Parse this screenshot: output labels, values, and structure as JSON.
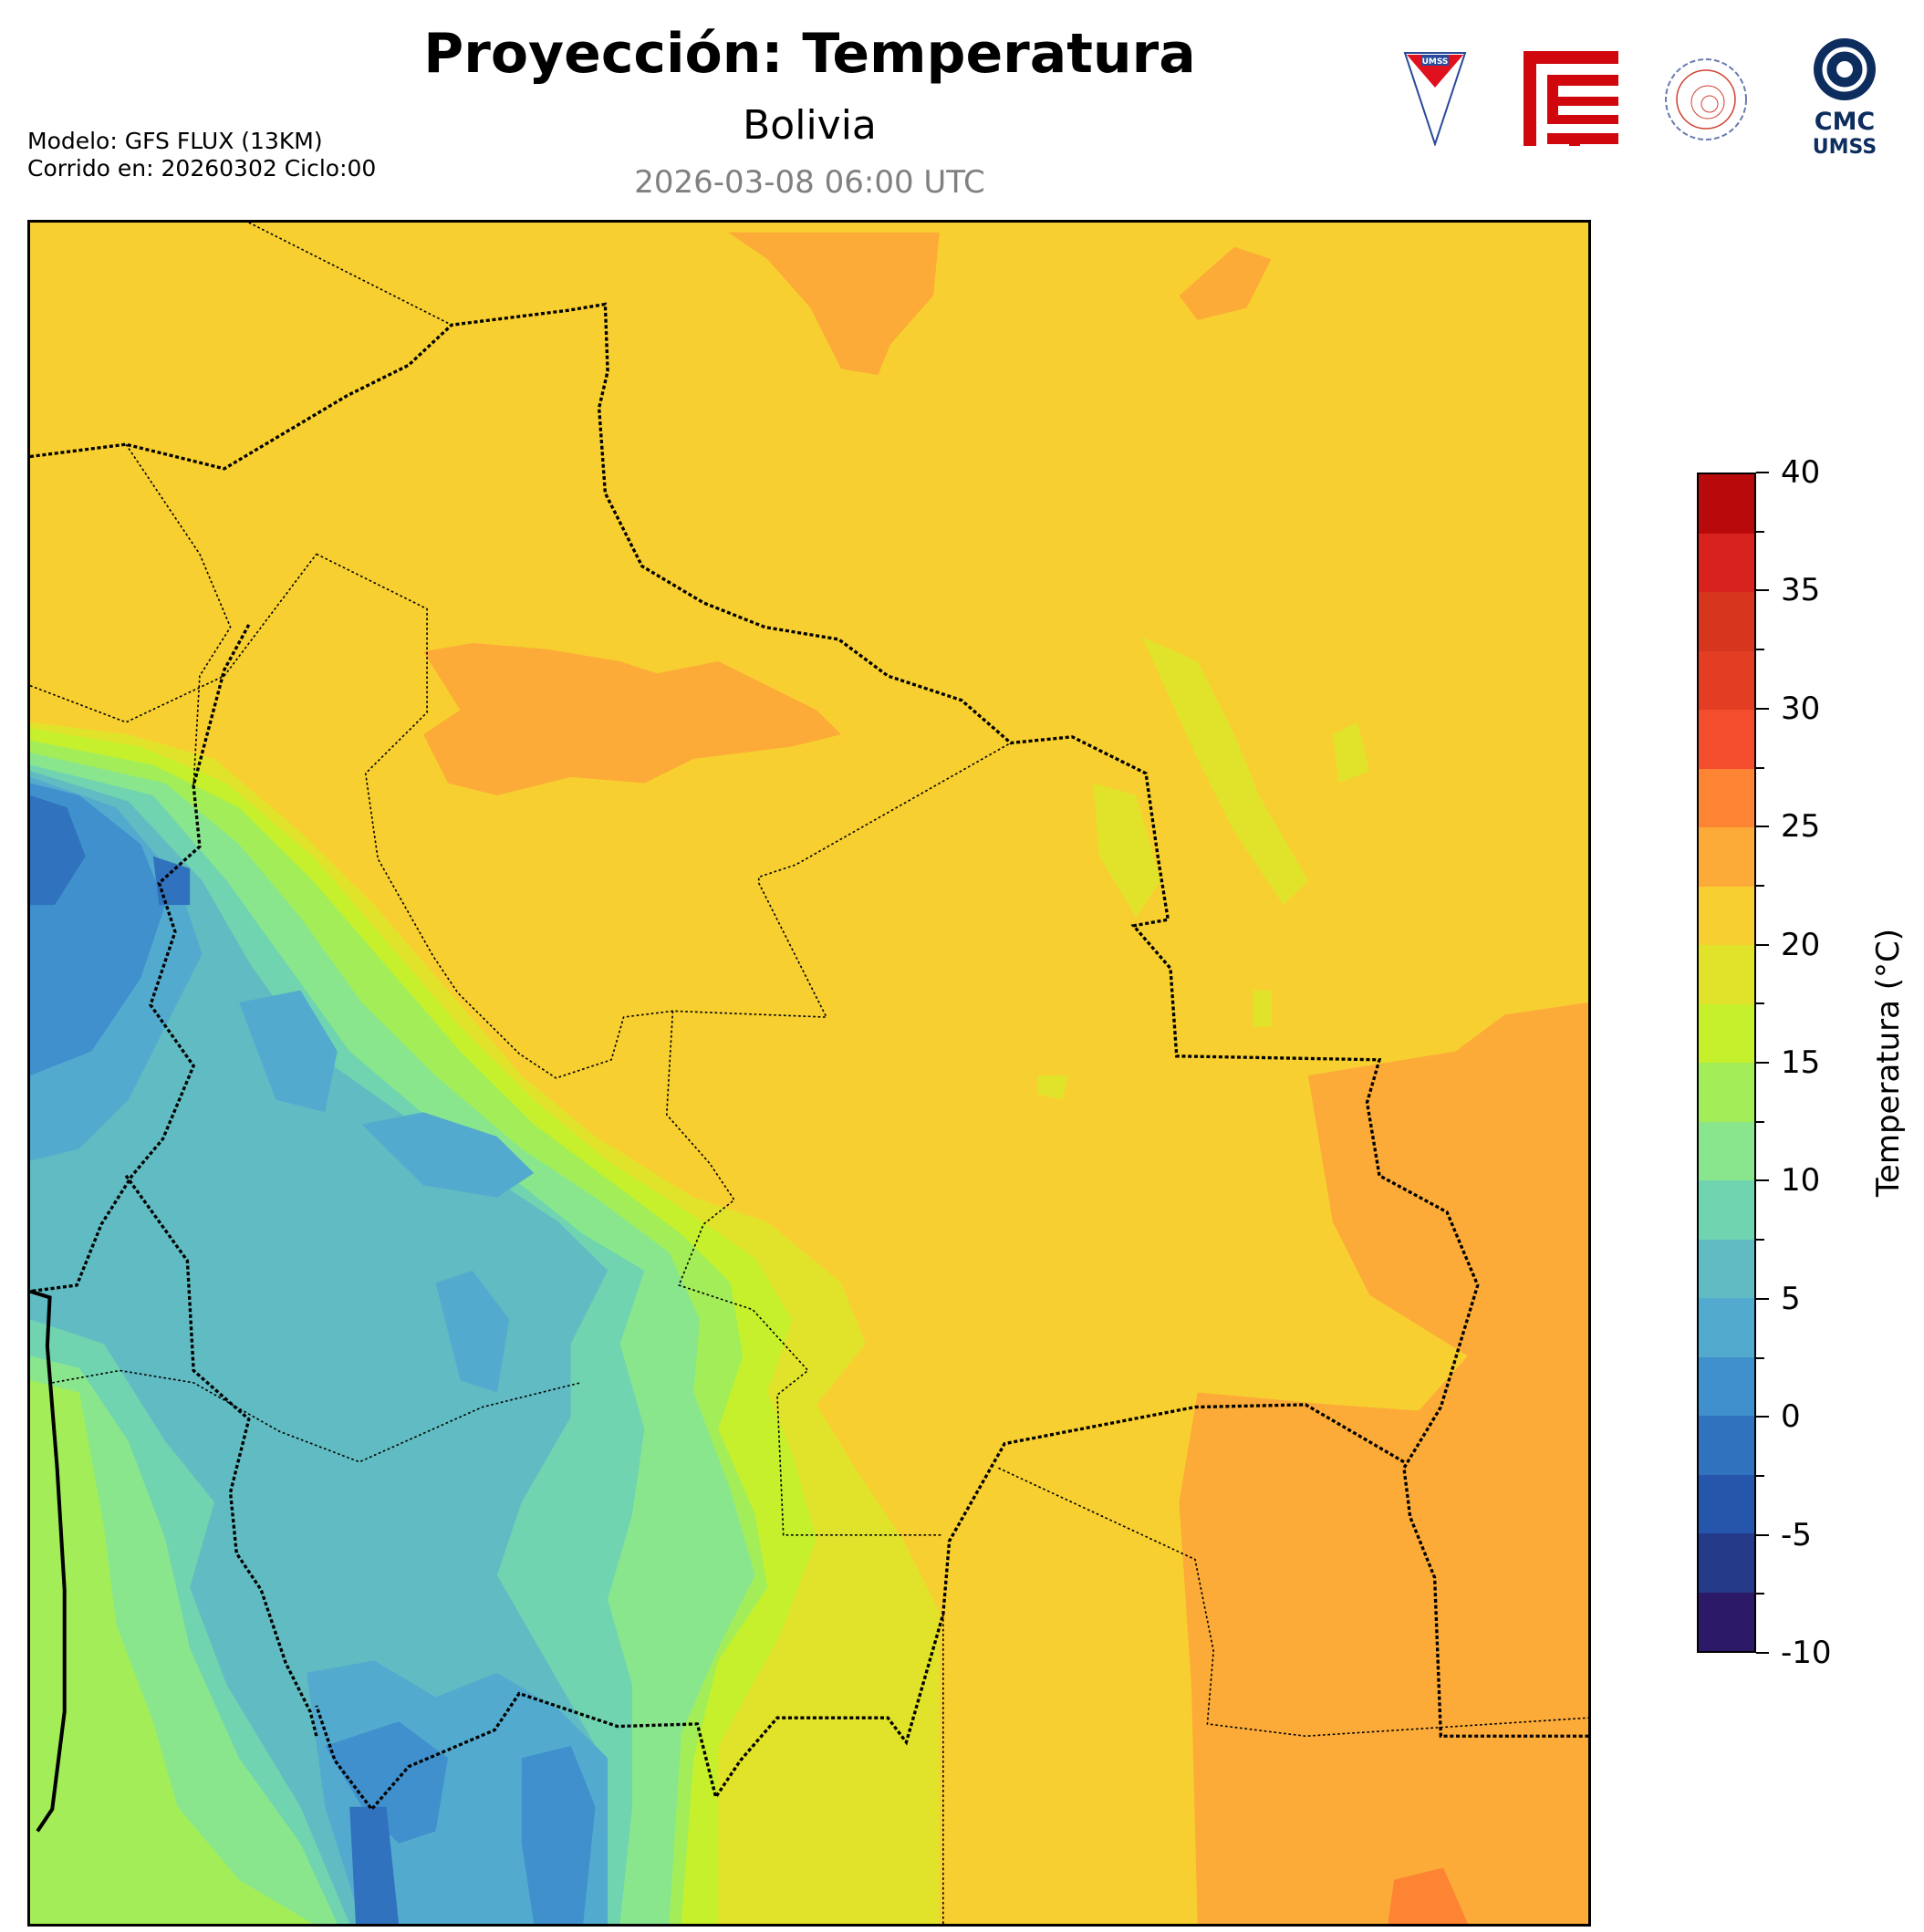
{
  "header": {
    "title": "Proyección: Temperatura",
    "subtitle": "Bolivia",
    "valid_time": "2026-03-08 06:00 UTC",
    "model_line": "Modelo: GFS FLUX (13KM)",
    "run_line": "Corrido en: 20260302 Ciclo:00"
  },
  "logos": [
    {
      "name": "umss-shield",
      "text": "UMSS"
    },
    {
      "name": "fcyt-logo",
      "text": ""
    },
    {
      "name": "departamento-fisica-seal",
      "text": "DEPARTAMENTO DE FÍSICA"
    },
    {
      "name": "cmc-umss-logo",
      "text": "CMC UMSS"
    }
  ],
  "chart_data": {
    "type": "heatmap",
    "title": "Proyección: Temperatura",
    "region": "Bolivia",
    "variable": "Temperatura",
    "colorbar": {
      "label": "Temperatura (°C)",
      "range": [
        -10,
        40
      ],
      "ticks": [
        "40",
        "35",
        "30",
        "25",
        "20",
        "15",
        "10",
        "5",
        "0",
        "-5",
        "-10"
      ],
      "levels": [
        -10,
        -7.5,
        -5,
        -2.5,
        0,
        2.5,
        5,
        7.5,
        10,
        12.5,
        15,
        17.5,
        20,
        22.5,
        25,
        27.5,
        30,
        32.5,
        35,
        37.5,
        40
      ],
      "colors": [
        "#2c1a68",
        "#253a88",
        "#2656ac",
        "#3072be",
        "#3f90cc",
        "#52abce",
        "#60bcc2",
        "#70d4b0",
        "#8ae68c",
        "#a3ee58",
        "#c6f02c",
        "#e1e32a",
        "#f8cf30",
        "#fcab38",
        "#fd8432",
        "#f44d2e",
        "#e33d24",
        "#d6361e",
        "#d8221e",
        "#b8090b"
      ]
    },
    "field_summary": {
      "dominant_range": "20 to 22.5 °C over lowlands (north and east)",
      "warm_patches": "22.5 to 27.5 °C in the southeast and scattered north",
      "cold_region": "-5 to 10 °C over the Altiplano / Andes in the southwest"
    }
  }
}
